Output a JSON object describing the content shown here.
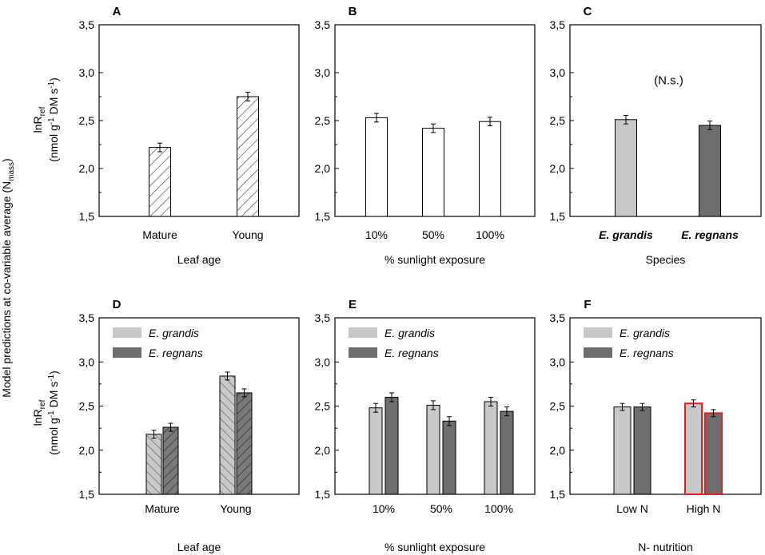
{
  "figure": {
    "global_ylabel": "Model predictions at  co-variable average (N",
    "global_ylabel_sub": "mass",
    "global_ylabel_end": ")",
    "row_ylabel_line1": "lnR",
    "row_ylabel_line1_sub": "ref",
    "row_ylabel_line2a": "(nmol g",
    "row_ylabel_line2_sup1": "-1",
    "row_ylabel_line2b": " DM s",
    "row_ylabel_line2_sup2": "-1",
    "row_ylabel_line2c": ")"
  },
  "colors": {
    "white": "#ffffff",
    "light_gray": "#c8c8c8",
    "dark_gray": "#6e6e6e",
    "highlight_red": "#e02020"
  },
  "chart_data": [
    {
      "panel": "A",
      "type": "bar",
      "xlabel": "Leaf age",
      "ylim": [
        1.5,
        3.5
      ],
      "yticks": [
        "1,5",
        "2,0",
        "2,5",
        "3,0",
        "3,5"
      ],
      "categories": [
        "Mature",
        "Young"
      ],
      "series": [
        {
          "name": "",
          "values": [
            2.22,
            2.75
          ],
          "errors": [
            0.045,
            0.045
          ],
          "fill": "hatch-fwd"
        }
      ]
    },
    {
      "panel": "B",
      "type": "bar",
      "xlabel": "% sunlight exposure",
      "ylim": [
        1.5,
        3.5
      ],
      "yticks": [
        "1,5",
        "2,0",
        "2,5",
        "3,0",
        "3,5"
      ],
      "categories": [
        "10%",
        "50%",
        "100%"
      ],
      "series": [
        {
          "name": "",
          "values": [
            2.53,
            2.42,
            2.49
          ],
          "errors": [
            0.045,
            0.045,
            0.045
          ],
          "fill": "white"
        }
      ]
    },
    {
      "panel": "C",
      "type": "bar",
      "xlabel": "Species",
      "annotation": "(N.s.)",
      "ylim": [
        1.5,
        3.5
      ],
      "yticks": [
        "1,5",
        "2,0",
        "2,5",
        "3,0",
        "3,5"
      ],
      "categories": [
        "E. grandis",
        "E. regnans"
      ],
      "italic_categories": true,
      "series": [
        {
          "name": "",
          "values": [
            2.51,
            2.45
          ],
          "errors": [
            0.045,
            0.045
          ],
          "fill": "per-category"
        }
      ]
    },
    {
      "panel": "D",
      "type": "bar",
      "xlabel": "Leaf age",
      "ylim": [
        1.5,
        3.5
      ],
      "yticks": [
        "1,5",
        "2,0",
        "2,5",
        "3,0",
        "3,5"
      ],
      "categories": [
        "Mature",
        "Young"
      ],
      "legend": [
        "E. grandis",
        "E. regnans"
      ],
      "series": [
        {
          "name": "E. grandis",
          "values": [
            2.18,
            2.84
          ],
          "errors": [
            0.045,
            0.045
          ],
          "fill": "hatch-back"
        },
        {
          "name": "E. regnans",
          "values": [
            2.26,
            2.65
          ],
          "errors": [
            0.045,
            0.045
          ],
          "fill": "hatch-fwd-dark"
        }
      ]
    },
    {
      "panel": "E",
      "type": "bar",
      "xlabel": "% sunlight exposure",
      "ylim": [
        1.5,
        3.5
      ],
      "yticks": [
        "1,5",
        "2,0",
        "2,5",
        "3,0",
        "3,5"
      ],
      "categories": [
        "10%",
        "50%",
        "100%"
      ],
      "legend": [
        "E. grandis",
        "E. regnans"
      ],
      "series": [
        {
          "name": "E. grandis",
          "values": [
            2.48,
            2.51,
            2.55
          ],
          "errors": [
            0.05,
            0.05,
            0.05
          ],
          "fill": "light"
        },
        {
          "name": "E. regnans",
          "values": [
            2.6,
            2.33,
            2.44
          ],
          "errors": [
            0.05,
            0.05,
            0.05
          ],
          "fill": "dark"
        }
      ]
    },
    {
      "panel": "F",
      "type": "bar",
      "xlabel": "N- nutrition",
      "ylim": [
        1.5,
        3.5
      ],
      "yticks": [
        "1,5",
        "2,0",
        "2,5",
        "3,0",
        "3,5"
      ],
      "categories": [
        "Low N",
        "High N"
      ],
      "legend": [
        "E. grandis",
        "E. regnans"
      ],
      "highlighted_category": "High N",
      "series": [
        {
          "name": "E. grandis",
          "values": [
            2.49,
            2.53
          ],
          "errors": [
            0.04,
            0.04
          ],
          "fill": "light"
        },
        {
          "name": "E. regnans",
          "values": [
            2.49,
            2.42
          ],
          "errors": [
            0.04,
            0.04
          ],
          "fill": "dark"
        }
      ]
    }
  ]
}
